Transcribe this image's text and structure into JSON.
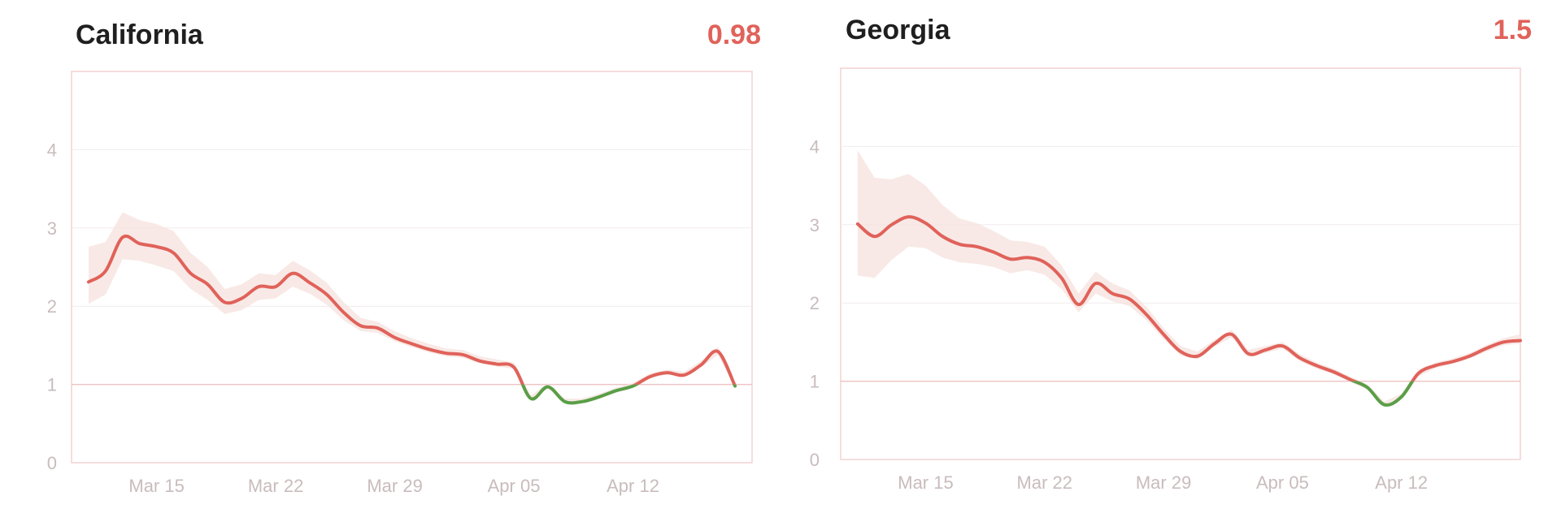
{
  "colors": {
    "above": "#e0625a",
    "below": "#5a9e47",
    "band": "#f6e2de",
    "frame": "#f3d2d2",
    "grid": "#f2ecec",
    "ref": "#eec4c4"
  },
  "chart_data": [
    {
      "type": "line",
      "title": "California",
      "rt_label": "0.98",
      "ylim": [
        0,
        5
      ],
      "yticks": [
        "0",
        "1",
        "2",
        "3",
        "4"
      ],
      "xlim": [
        "2020-03-10",
        "2020-04-19"
      ],
      "xticks": [
        {
          "date": "2020-03-15",
          "label": "Mar 15"
        },
        {
          "date": "2020-03-22",
          "label": "Mar 22"
        },
        {
          "date": "2020-03-29",
          "label": "Mar 29"
        },
        {
          "date": "2020-04-05",
          "label": "Apr 05"
        },
        {
          "date": "2020-04-12",
          "label": "Apr 12"
        }
      ],
      "reference_line": 1,
      "series": [
        {
          "x": [
            "2020-03-11",
            "2020-03-12",
            "2020-03-13",
            "2020-03-14",
            "2020-03-15",
            "2020-03-16",
            "2020-03-17",
            "2020-03-18",
            "2020-03-19",
            "2020-03-20",
            "2020-03-21",
            "2020-03-22",
            "2020-03-23",
            "2020-03-24",
            "2020-03-25",
            "2020-03-26",
            "2020-03-27",
            "2020-03-28",
            "2020-03-29",
            "2020-03-30",
            "2020-03-31",
            "2020-04-01",
            "2020-04-02",
            "2020-04-03",
            "2020-04-04",
            "2020-04-05",
            "2020-04-06",
            "2020-04-07",
            "2020-04-08",
            "2020-04-09",
            "2020-04-10",
            "2020-04-11",
            "2020-04-12",
            "2020-04-13",
            "2020-04-14",
            "2020-04-15",
            "2020-04-16",
            "2020-04-17",
            "2020-04-18"
          ],
          "y": [
            2.31,
            2.45,
            2.88,
            2.8,
            2.76,
            2.68,
            2.42,
            2.28,
            2.05,
            2.1,
            2.25,
            2.25,
            2.42,
            2.3,
            2.15,
            1.92,
            1.75,
            1.72,
            1.6,
            1.52,
            1.45,
            1.4,
            1.38,
            1.3,
            1.26,
            1.22,
            0.82,
            0.97,
            0.78,
            0.78,
            0.84,
            0.92,
            0.98,
            1.1,
            1.15,
            1.12,
            1.25,
            1.42,
            0.98
          ],
          "lower": [
            2.03,
            2.15,
            2.6,
            2.58,
            2.52,
            2.45,
            2.22,
            2.08,
            1.9,
            1.95,
            2.08,
            2.1,
            2.25,
            2.16,
            2.02,
            1.82,
            1.68,
            1.66,
            1.55,
            1.48,
            1.41,
            1.36,
            1.34,
            1.27,
            1.23,
            1.2,
            0.8,
            0.95,
            0.76,
            0.76,
            0.82,
            0.9,
            0.96,
            1.08,
            1.13,
            1.1,
            1.22,
            1.38,
            0.95
          ],
          "upper": [
            2.76,
            2.82,
            3.2,
            3.1,
            3.05,
            2.96,
            2.68,
            2.5,
            2.22,
            2.28,
            2.42,
            2.4,
            2.58,
            2.46,
            2.3,
            2.05,
            1.85,
            1.8,
            1.68,
            1.59,
            1.52,
            1.46,
            1.44,
            1.36,
            1.32,
            1.28,
            0.86,
            1.01,
            0.82,
            0.82,
            0.88,
            0.96,
            1.02,
            1.14,
            1.19,
            1.16,
            1.3,
            1.48,
            1.02
          ]
        }
      ]
    },
    {
      "type": "line",
      "title": "Georgia",
      "rt_label": "1.5",
      "ylim": [
        0,
        5
      ],
      "yticks": [
        "0",
        "1",
        "2",
        "3",
        "4"
      ],
      "xlim": [
        "2020-03-10",
        "2020-04-19"
      ],
      "xticks": [
        {
          "date": "2020-03-15",
          "label": "Mar 15"
        },
        {
          "date": "2020-03-22",
          "label": "Mar 22"
        },
        {
          "date": "2020-03-29",
          "label": "Mar 29"
        },
        {
          "date": "2020-04-05",
          "label": "Apr 05"
        },
        {
          "date": "2020-04-12",
          "label": "Apr 12"
        }
      ],
      "reference_line": 1,
      "series": [
        {
          "x": [
            "2020-03-11",
            "2020-03-12",
            "2020-03-13",
            "2020-03-14",
            "2020-03-15",
            "2020-03-16",
            "2020-03-17",
            "2020-03-18",
            "2020-03-19",
            "2020-03-20",
            "2020-03-21",
            "2020-03-22",
            "2020-03-23",
            "2020-03-24",
            "2020-03-25",
            "2020-03-26",
            "2020-03-27",
            "2020-03-28",
            "2020-03-29",
            "2020-03-30",
            "2020-03-31",
            "2020-04-01",
            "2020-04-02",
            "2020-04-03",
            "2020-04-04",
            "2020-04-05",
            "2020-04-06",
            "2020-04-07",
            "2020-04-08",
            "2020-04-09",
            "2020-04-10",
            "2020-04-11",
            "2020-04-12",
            "2020-04-13",
            "2020-04-14",
            "2020-04-15",
            "2020-04-16",
            "2020-04-17",
            "2020-04-18",
            "2020-04-19"
          ],
          "y": [
            3.01,
            2.85,
            3.0,
            3.1,
            3.02,
            2.85,
            2.75,
            2.72,
            2.65,
            2.56,
            2.58,
            2.52,
            2.32,
            1.98,
            2.25,
            2.12,
            2.05,
            1.85,
            1.6,
            1.38,
            1.32,
            1.48,
            1.6,
            1.35,
            1.4,
            1.45,
            1.3,
            1.2,
            1.12,
            1.02,
            0.92,
            0.7,
            0.8,
            1.1,
            1.2,
            1.25,
            1.32,
            1.42,
            1.5,
            1.52
          ],
          "lower": [
            2.35,
            2.32,
            2.55,
            2.72,
            2.7,
            2.58,
            2.52,
            2.5,
            2.46,
            2.38,
            2.42,
            2.36,
            2.18,
            1.88,
            2.12,
            2.02,
            1.96,
            1.78,
            1.54,
            1.33,
            1.28,
            1.44,
            1.56,
            1.31,
            1.36,
            1.42,
            1.26,
            1.16,
            1.09,
            0.99,
            0.89,
            0.67,
            0.77,
            1.06,
            1.17,
            1.22,
            1.29,
            1.38,
            1.46,
            1.48
          ],
          "upper": [
            3.95,
            3.6,
            3.58,
            3.65,
            3.5,
            3.25,
            3.08,
            3.02,
            2.92,
            2.8,
            2.78,
            2.72,
            2.48,
            2.12,
            2.4,
            2.25,
            2.16,
            1.95,
            1.68,
            1.45,
            1.38,
            1.53,
            1.66,
            1.4,
            1.45,
            1.5,
            1.35,
            1.24,
            1.16,
            1.06,
            0.96,
            0.74,
            0.84,
            1.15,
            1.24,
            1.29,
            1.36,
            1.46,
            1.55,
            1.6
          ]
        }
      ]
    }
  ]
}
